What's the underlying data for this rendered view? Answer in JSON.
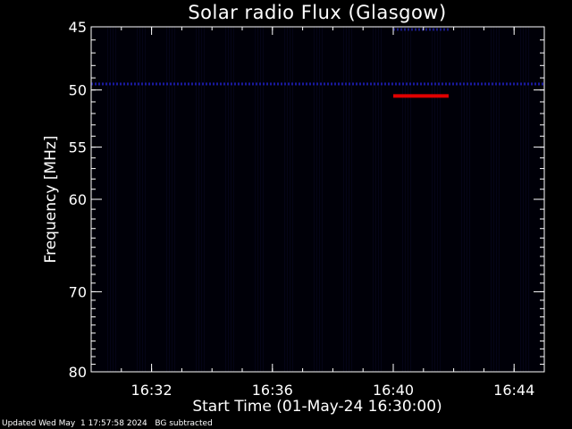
{
  "chart_data": {
    "type": "heatmap",
    "title": "Solar radio Flux (Glasgow)",
    "xlabel": "Start Time (01-May-24 16:30:00)",
    "ylabel": "Frequency [MHz]",
    "x_range": [
      "16:30:00",
      "16:45:00"
    ],
    "y_range": [
      45,
      80
    ],
    "y_scale": "log",
    "y_inverted": true,
    "x_ticks": [
      "16:32",
      "16:36",
      "16:40",
      "16:44"
    ],
    "y_ticks": [
      45,
      50,
      55,
      60,
      70,
      80
    ],
    "background_color": "#000000",
    "features": [
      {
        "type": "persistent-band",
        "frequency_mhz": 50.5,
        "time_start": "16:40:00",
        "time_end": "16:41:50",
        "color": "#e00000"
      },
      {
        "type": "faint-band",
        "frequency_mhz": 49.5,
        "time_start": "16:30:00",
        "time_end": "16:45:00",
        "color": "#1a1aa0"
      },
      {
        "type": "faint-band",
        "frequency_mhz": 45.2,
        "time_start": "16:40:00",
        "time_end": "16:41:50",
        "color": "#1a1a80"
      }
    ],
    "note": "BG subtracted"
  },
  "footer": {
    "updated": "Updated Wed May  1 17:57:58 2024",
    "note": "BG subtracted"
  }
}
